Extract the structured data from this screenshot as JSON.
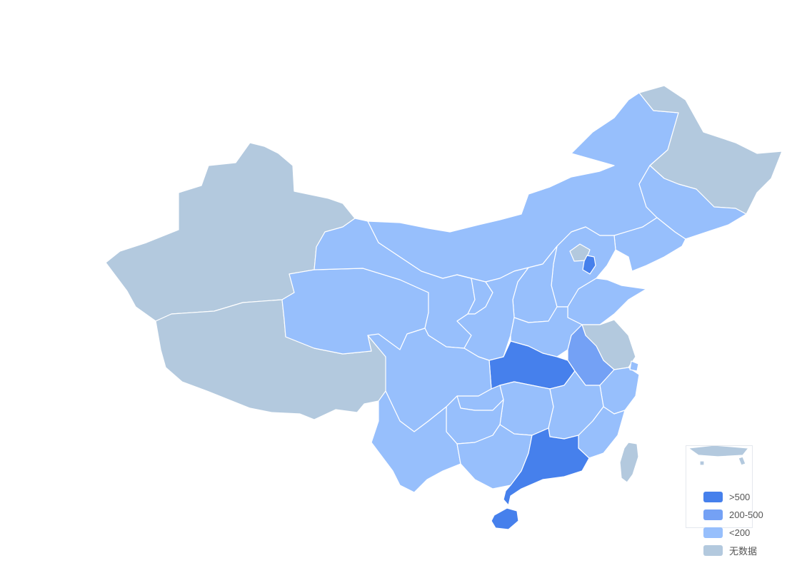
{
  "map": {
    "region": "China",
    "colors": {
      "high": "#4680ec",
      "medium": "#74a1f5",
      "low": "#97bffc",
      "nodata": "#b3c9de",
      "border": "#ffffff"
    }
  },
  "legend": {
    "items": [
      {
        "label": ">500",
        "color": "#4680ec"
      },
      {
        "label": "200-500",
        "color": "#74a1f5"
      },
      {
        "label": "<200",
        "color": "#97bffc"
      },
      {
        "label": "无数据",
        "color": "#b3c9de"
      }
    ]
  }
}
